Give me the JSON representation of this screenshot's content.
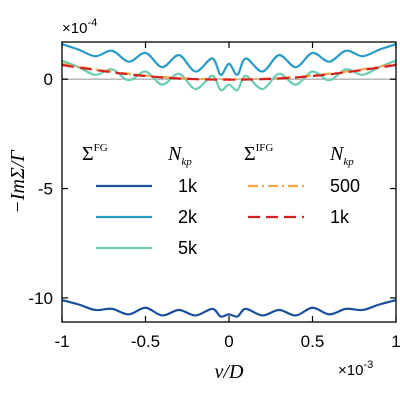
{
  "chart_data": {
    "type": "line",
    "x_scale_label": "×10",
    "x_scale_exp": "-3",
    "y_scale_label": "×10",
    "y_scale_exp": "-4",
    "xlabel": "ν/D",
    "ylabel": "−ImΣ/Γ",
    "xlim": [
      -1,
      1
    ],
    "ylim": [
      -11.1,
      1.7
    ],
    "x_ticks": [
      -1,
      -0.5,
      0,
      0.5,
      1
    ],
    "x_tick_labels": [
      "-1",
      "-0.5",
      "0",
      "0.5",
      "1"
    ],
    "y_ticks": [
      0,
      -5,
      -10
    ],
    "y_tick_labels": [
      "0",
      "-5",
      "-10"
    ],
    "reference_line": {
      "y": 0,
      "color": "#b0b0b0"
    },
    "legend": {
      "placement": "center",
      "col1_header": "Σ",
      "col1_header_sup": "FG",
      "col1_header_n": "N",
      "col1_header_nsub": "kp",
      "col2_header": "Σ",
      "col2_header_sup": "IFG",
      "col2_header_n": "N",
      "col2_header_nsub": "kp",
      "col1_entries": [
        "1k",
        "2k",
        "5k"
      ],
      "col2_entries": [
        "500",
        "1k"
      ]
    },
    "series": [
      {
        "group": "FG",
        "label": "1k",
        "color": "#1a4f9c",
        "dash": "solid",
        "x": [
          -1,
          -0.9,
          -0.8,
          -0.7,
          -0.6,
          -0.5,
          -0.4,
          -0.3,
          -0.2,
          -0.1,
          -0.05,
          0,
          0.05,
          0.1,
          0.2,
          0.3,
          0.4,
          0.5,
          0.6,
          0.7,
          0.8,
          0.9,
          1
        ],
        "y": [
          -10.1,
          -10.3,
          -10.55,
          -10.5,
          -10.75,
          -10.45,
          -10.8,
          -10.55,
          -10.8,
          -10.5,
          -10.85,
          -10.75,
          -10.85,
          -10.5,
          -10.8,
          -10.55,
          -10.8,
          -10.45,
          -10.75,
          -10.5,
          -10.55,
          -10.3,
          -10.1
        ]
      },
      {
        "group": "FG",
        "label": "2k",
        "color": "#2a9bc4",
        "dash": "solid",
        "x": [
          -1,
          -0.9,
          -0.8,
          -0.7,
          -0.6,
          -0.5,
          -0.4,
          -0.3,
          -0.2,
          -0.1,
          -0.05,
          0,
          0.05,
          0.1,
          0.2,
          0.3,
          0.4,
          0.5,
          0.6,
          0.7,
          0.8,
          0.9,
          1
        ],
        "y": [
          1.6,
          1.35,
          1.05,
          1.3,
          0.8,
          1.2,
          0.55,
          1.1,
          0.35,
          0.95,
          0.2,
          0.7,
          0.2,
          0.95,
          0.35,
          1.1,
          0.55,
          1.2,
          0.8,
          1.3,
          1.05,
          1.35,
          1.6
        ]
      },
      {
        "group": "FG",
        "label": "5k",
        "color": "#6cccb4",
        "dash": "solid",
        "x": [
          -1,
          -0.9,
          -0.8,
          -0.7,
          -0.6,
          -0.5,
          -0.4,
          -0.3,
          -0.2,
          -0.1,
          -0.05,
          0,
          0.05,
          0.1,
          0.2,
          0.3,
          0.4,
          0.5,
          0.6,
          0.7,
          0.8,
          0.9,
          1
        ],
        "y": [
          0.85,
          0.55,
          0.2,
          0.45,
          -0.05,
          0.35,
          -0.25,
          0.25,
          -0.45,
          0.15,
          -0.5,
          -0.25,
          -0.5,
          0.15,
          -0.45,
          0.25,
          -0.25,
          0.35,
          -0.05,
          0.45,
          0.2,
          0.55,
          0.85
        ]
      },
      {
        "group": "IFG",
        "label": "500",
        "color": "#f0a64a",
        "dash": "dashdot",
        "x": [
          -1,
          -0.8,
          -0.6,
          -0.4,
          -0.2,
          0,
          0.2,
          0.4,
          0.6,
          0.8,
          1
        ],
        "y": [
          0.7,
          0.45,
          0.25,
          0.1,
          0.02,
          0,
          0.02,
          0.1,
          0.25,
          0.45,
          0.7
        ]
      },
      {
        "group": "IFG",
        "label": "1k",
        "color": "#d42020",
        "dash": "dashed",
        "x": [
          -1,
          -0.8,
          -0.6,
          -0.4,
          -0.2,
          0,
          0.2,
          0.4,
          0.6,
          0.8,
          1
        ],
        "y": [
          0.65,
          0.42,
          0.22,
          0.08,
          0.0,
          -0.02,
          0.0,
          0.08,
          0.22,
          0.42,
          0.65
        ]
      }
    ]
  }
}
